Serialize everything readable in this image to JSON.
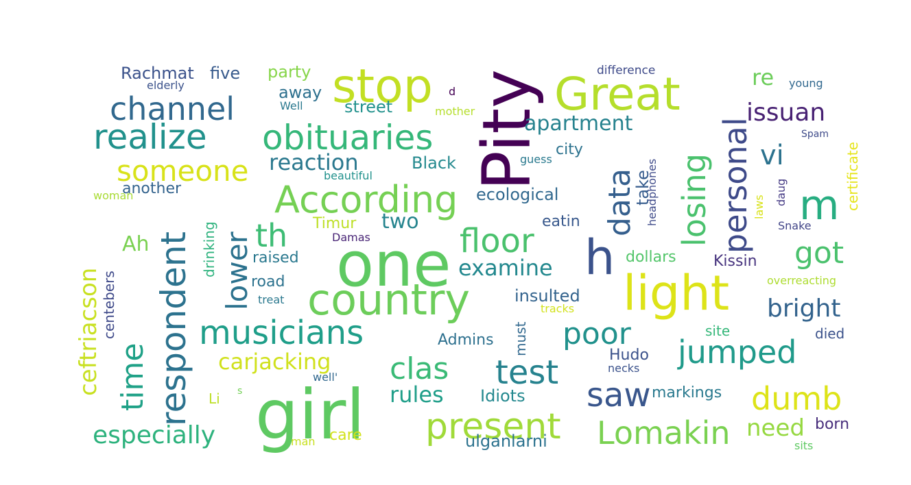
{
  "words": [
    {
      "text": "girl",
      "color": "#5ec962"
    },
    {
      "text": "one",
      "color": "#5ec962"
    },
    {
      "text": "country",
      "color": "#6ccd5a"
    },
    {
      "text": "Pity",
      "color": "#440154"
    },
    {
      "text": "light",
      "color": "#dde318"
    },
    {
      "text": "Great",
      "color": "#b5de2b"
    },
    {
      "text": "stop",
      "color": "#c2df23"
    },
    {
      "text": "h",
      "color": "#3b528b"
    },
    {
      "text": "According",
      "color": "#75d054"
    },
    {
      "text": "obituaries",
      "color": "#35b779"
    },
    {
      "text": "realize",
      "color": "#21918c"
    },
    {
      "text": "channel",
      "color": "#31688e"
    },
    {
      "text": "respondent",
      "color": "#2c728e"
    },
    {
      "text": "musicians",
      "color": "#1f9e89"
    },
    {
      "text": "present",
      "color": "#a0da39"
    },
    {
      "text": "Lomakin",
      "color": "#7ad151"
    },
    {
      "text": "m",
      "color": "#27ad81"
    },
    {
      "text": "personal",
      "color": "#3e4a89"
    },
    {
      "text": "losing",
      "color": "#4ac16d"
    },
    {
      "text": "data",
      "color": "#355f8d"
    },
    {
      "text": "someone",
      "color": "#d8e219"
    },
    {
      "text": "floor",
      "color": "#4ac16d"
    },
    {
      "text": "jumped",
      "color": "#1f9a8a"
    },
    {
      "text": "saw",
      "color": "#39568c"
    },
    {
      "text": "test",
      "color": "#26828e"
    },
    {
      "text": "dumb",
      "color": "#dde318"
    },
    {
      "text": "clas",
      "color": "#3aba76"
    },
    {
      "text": "time",
      "color": "#1fa187"
    },
    {
      "text": "poor",
      "color": "#21918c"
    },
    {
      "text": "especially",
      "color": "#2db27d"
    },
    {
      "text": "th",
      "color": "#3dbc74"
    },
    {
      "text": "lower",
      "color": "#2c728e"
    },
    {
      "text": "got",
      "color": "#4ac16d"
    },
    {
      "text": "vi",
      "color": "#2c728e"
    },
    {
      "text": "ceftriacson",
      "color": "#c8e020"
    },
    {
      "text": "bright",
      "color": "#33638d"
    },
    {
      "text": "carjacking",
      "color": "#d0e11c"
    },
    {
      "text": "issuan",
      "color": "#482173"
    },
    {
      "text": "apartment",
      "color": "#26828e"
    },
    {
      "text": "examine",
      "color": "#23888e"
    },
    {
      "text": "need",
      "color": "#95d840"
    },
    {
      "text": "rules",
      "color": "#1f9e89"
    },
    {
      "text": "reaction",
      "color": "#2a788e"
    },
    {
      "text": "two",
      "color": "#25848e"
    },
    {
      "text": "Ah",
      "color": "#7ad151"
    },
    {
      "text": "re",
      "color": "#6ccd5a"
    },
    {
      "text": "street",
      "color": "#21918c"
    },
    {
      "text": "Rachmat",
      "color": "#3b528b"
    },
    {
      "text": "five",
      "color": "#375a8c"
    },
    {
      "text": "party",
      "color": "#86d549"
    },
    {
      "text": "away",
      "color": "#2d708e"
    },
    {
      "text": "Black",
      "color": "#23898e"
    },
    {
      "text": "city",
      "color": "#2c728e"
    },
    {
      "text": "ecological",
      "color": "#31688e"
    },
    {
      "text": "take",
      "color": "#365c8d"
    },
    {
      "text": "eatin",
      "color": "#38588c"
    },
    {
      "text": "Timur",
      "color": "#bddf26"
    },
    {
      "text": "another",
      "color": "#33638d"
    },
    {
      "text": "raised",
      "color": "#2a788e"
    },
    {
      "text": "road",
      "color": "#2c728e"
    },
    {
      "text": "insulted",
      "color": "#33638d"
    },
    {
      "text": "dollars",
      "color": "#52c569"
    },
    {
      "text": "Kissin",
      "color": "#46337e"
    },
    {
      "text": "Admins",
      "color": "#2d708e"
    },
    {
      "text": "must",
      "color": "#31688e"
    },
    {
      "text": "Hudo",
      "color": "#3b528b"
    },
    {
      "text": "Idiots",
      "color": "#23888e"
    },
    {
      "text": "markings",
      "color": "#29798e"
    },
    {
      "text": "ulganlarni",
      "color": "#2c728e"
    },
    {
      "text": "care",
      "color": "#d2e21b"
    },
    {
      "text": "born",
      "color": "#472d7b"
    },
    {
      "text": "site",
      "color": "#35b779"
    },
    {
      "text": "died",
      "color": "#3b528b"
    },
    {
      "text": "certificate",
      "color": "#e5e419"
    },
    {
      "text": "drinking",
      "color": "#2db27d"
    },
    {
      "text": "centebers",
      "color": "#3e4989"
    },
    {
      "text": "Li",
      "color": "#bddf26"
    },
    {
      "text": "Damas",
      "color": "#482475"
    },
    {
      "text": "treat",
      "color": "#2a788e"
    },
    {
      "text": "tracks",
      "color": "#d2e21b"
    },
    {
      "text": "well'",
      "color": "#31688e"
    },
    {
      "text": "necks",
      "color": "#3b528b"
    },
    {
      "text": "headphones",
      "color": "#3e4a89"
    },
    {
      "text": "laws",
      "color": "#d8e219"
    },
    {
      "text": "daug",
      "color": "#443983"
    },
    {
      "text": "Snake",
      "color": "#414487"
    },
    {
      "text": "overreacting",
      "color": "#addc30"
    },
    {
      "text": "Spam",
      "color": "#3e4a89"
    },
    {
      "text": "young",
      "color": "#31688e"
    },
    {
      "text": "difference",
      "color": "#3e4a89"
    },
    {
      "text": "elderly",
      "color": "#3b528b"
    },
    {
      "text": "Well",
      "color": "#2a788e"
    },
    {
      "text": "mother",
      "color": "#b5de2b"
    },
    {
      "text": "d",
      "color": "#440154"
    },
    {
      "text": "guess",
      "color": "#29798e"
    },
    {
      "text": "beautiful",
      "color": "#21918c"
    },
    {
      "text": "woman",
      "color": "#a8db34"
    },
    {
      "text": "s",
      "color": "#73d056"
    },
    {
      "text": "man",
      "color": "#c8e020"
    },
    {
      "text": "sits",
      "color": "#5ec962"
    }
  ]
}
